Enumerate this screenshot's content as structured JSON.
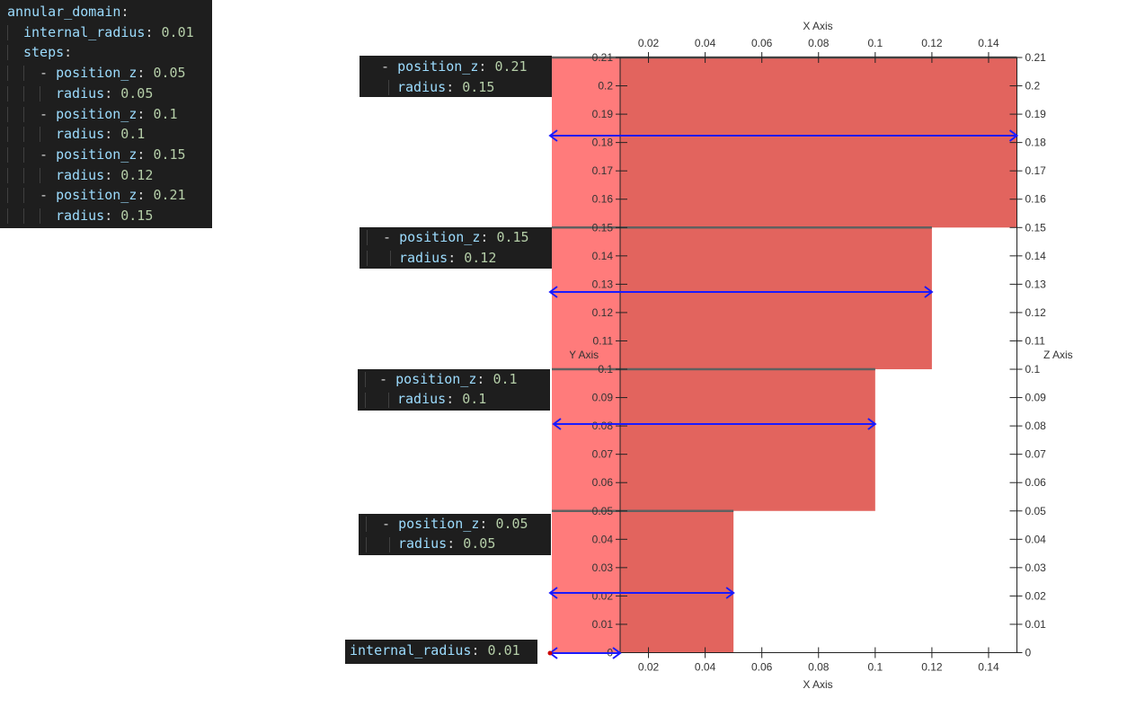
{
  "config": {
    "lines": [
      {
        "indent": 0,
        "dash": false,
        "key": "annular_domain",
        "value": ""
      },
      {
        "indent": 1,
        "dash": false,
        "key": "internal_radius",
        "value": "0.01"
      },
      {
        "indent": 1,
        "dash": false,
        "key": "steps",
        "value": ""
      },
      {
        "indent": 2,
        "dash": true,
        "key": "position_z",
        "value": "0.05"
      },
      {
        "indent": 3,
        "dash": false,
        "key": "radius",
        "value": "0.05"
      },
      {
        "indent": 2,
        "dash": true,
        "key": "position_z",
        "value": "0.1"
      },
      {
        "indent": 3,
        "dash": false,
        "key": "radius",
        "value": "0.1"
      },
      {
        "indent": 2,
        "dash": true,
        "key": "position_z",
        "value": "0.15"
      },
      {
        "indent": 3,
        "dash": false,
        "key": "radius",
        "value": "0.12"
      },
      {
        "indent": 2,
        "dash": true,
        "key": "position_z",
        "value": "0.21"
      },
      {
        "indent": 3,
        "dash": false,
        "key": "radius",
        "value": "0.15"
      }
    ]
  },
  "step_labels": [
    {
      "pos_key": "position_z",
      "pos_value": "0.21",
      "rad_key": "radius",
      "rad_value": "0.15"
    },
    {
      "pos_key": "position_z",
      "pos_value": "0.15",
      "rad_key": "radius",
      "rad_value": "0.12"
    },
    {
      "pos_key": "position_z",
      "pos_value": "0.1",
      "rad_key": "radius",
      "rad_value": "0.1"
    },
    {
      "pos_key": "position_z",
      "pos_value": "0.05",
      "rad_key": "radius",
      "rad_value": "0.05"
    }
  ],
  "internal_label": {
    "key": "internal_radius",
    "value": "0.01"
  },
  "plot": {
    "x_axis_title": "X Axis",
    "z_axis_title": "Z Axis",
    "y_axis_title": "Y Axis",
    "x_ticks": [
      "0.02",
      "0.04",
      "0.06",
      "0.08",
      "0.1",
      "0.12",
      "0.14"
    ],
    "z_ticks": [
      "0",
      "0.01",
      "0.02",
      "0.03",
      "0.04",
      "0.05",
      "0.06",
      "0.07",
      "0.08",
      "0.09",
      "0.1",
      "0.11",
      "0.12",
      "0.13",
      "0.14",
      "0.15",
      "0.16",
      "0.17",
      "0.18",
      "0.19",
      "0.2",
      "0.21"
    ],
    "x_range": [
      0,
      0.15
    ],
    "z_range": [
      0,
      0.21
    ],
    "internal_radius": 0.01,
    "steps": [
      {
        "z_from": 0,
        "z_to": 0.05,
        "radius": 0.05
      },
      {
        "z_from": 0.05,
        "z_to": 0.1,
        "radius": 0.1
      },
      {
        "z_from": 0.1,
        "z_to": 0.15,
        "radius": 0.12
      },
      {
        "z_from": 0.15,
        "z_to": 0.21,
        "radius": 0.15
      }
    ],
    "colors": {
      "fill": "#e2645e",
      "inner_fill": "#ff7b7b",
      "arrow": "#1a1aff",
      "boundary": "#606060",
      "axis": "#222222"
    }
  }
}
